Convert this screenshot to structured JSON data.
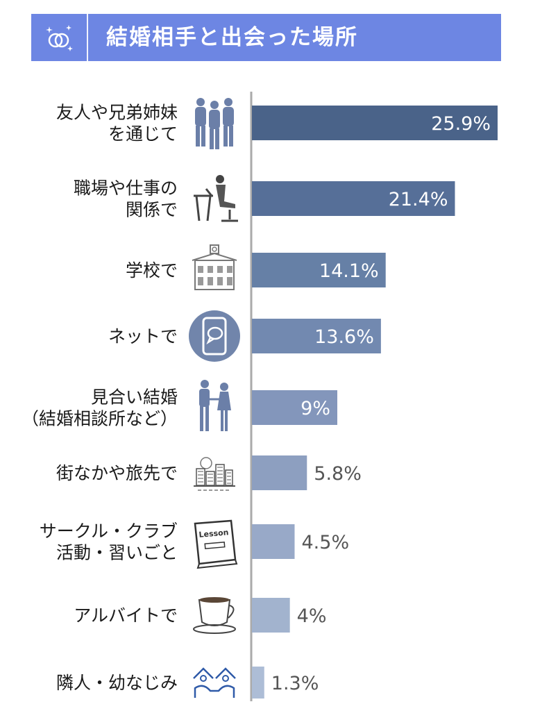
{
  "header": {
    "title": "結婚相手と出会った場所",
    "icon": "rings-icon",
    "background": "#6d86e3"
  },
  "chart_data": {
    "type": "bar",
    "orientation": "horizontal",
    "title": "結婚相手と出会った場所",
    "categories": [
      [
        "友人や兄弟姉妹",
        "を通じて"
      ],
      [
        "職場や仕事の",
        "関係で"
      ],
      [
        "学校で"
      ],
      [
        "ネットで"
      ],
      [
        "見合い結婚",
        "（結婚相談所など）"
      ],
      [
        "街なかや旅先で"
      ],
      [
        "サークル・クラブ",
        "活動・習いごと"
      ],
      [
        "アルバイトで"
      ],
      [
        "隣人・幼なじみ"
      ]
    ],
    "values": [
      25.9,
      21.4,
      14.1,
      13.6,
      9,
      5.8,
      4.5,
      4,
      1.3
    ],
    "value_labels": [
      "25.9%",
      "21.4%",
      "14.1%",
      "13.6%",
      "9%",
      "5.8%",
      "4.5%",
      "4%",
      "1.3%"
    ],
    "icons": [
      "friends-group-icon",
      "office-worker-icon",
      "school-building-icon",
      "smartphone-chat-icon",
      "couple-holding-hands-icon",
      "cityscape-icon",
      "lesson-book-icon",
      "coffee-cup-icon",
      "neighbors-houses-icon"
    ],
    "bar_colors": [
      "#4a6389",
      "#566f98",
      "#6680a6",
      "#7289b0",
      "#8396bb",
      "#8d9fc0",
      "#98a9c8",
      "#a2b3ce",
      "#adbdd6"
    ],
    "value_label_colors": [
      "#ffffff",
      "#ffffff",
      "#ffffff",
      "#ffffff",
      "#ffffff",
      "#555555",
      "#555555",
      "#555555",
      "#555555"
    ],
    "xlim": [
      0,
      26
    ],
    "axis_color": "#aaaaaa",
    "grid": false,
    "legend": "none"
  }
}
